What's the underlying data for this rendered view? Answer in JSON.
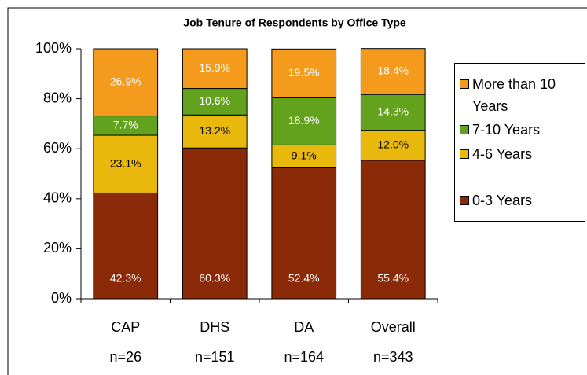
{
  "chart_data": {
    "type": "stacked_bar_percent",
    "title": "Job Tenure of Respondents by Office Type",
    "categories": [
      "CAP",
      "DHS",
      "DA",
      "Overall"
    ],
    "category_counts": [
      "n=26",
      "n=151",
      "n=164",
      "n=343"
    ],
    "series": [
      {
        "name": "0-3 Years",
        "color": "#8b2a08",
        "label_color": "#ffffff",
        "values": [
          42.3,
          60.3,
          52.4,
          55.4
        ],
        "value_labels": [
          "42.3%",
          "60.3%",
          "52.4%",
          "55.4%"
        ]
      },
      {
        "name": "4-6 Years",
        "color": "#e8b80c",
        "label_color": "#000000",
        "values": [
          23.1,
          13.2,
          9.1,
          12.0
        ],
        "value_labels": [
          "23.1%",
          "13.2%",
          "9.1%",
          "12.0%"
        ]
      },
      {
        "name": "7-10 Years",
        "color": "#62a21c",
        "label_color": "#ffffff",
        "values": [
          7.7,
          10.6,
          18.9,
          14.3
        ],
        "value_labels": [
          "7.7%",
          "10.6%",
          "18.9%",
          "14.3%"
        ]
      },
      {
        "name": "More than 10 Years",
        "color": "#f49a1c",
        "label_color": "#ffffff",
        "values": [
          26.9,
          15.9,
          19.5,
          18.4
        ],
        "value_labels": [
          "26.9%",
          "15.9%",
          "19.5%",
          "18.4%"
        ]
      }
    ],
    "ylim": [
      0,
      100
    ],
    "yticks": [
      {
        "value": 0,
        "label": "0%"
      },
      {
        "value": 20,
        "label": "20%"
      },
      {
        "value": 40,
        "label": "40%"
      },
      {
        "value": 60,
        "label": "60%"
      },
      {
        "value": 80,
        "label": "80%"
      },
      {
        "value": 100,
        "label": "100%"
      }
    ],
    "legend": "right"
  }
}
